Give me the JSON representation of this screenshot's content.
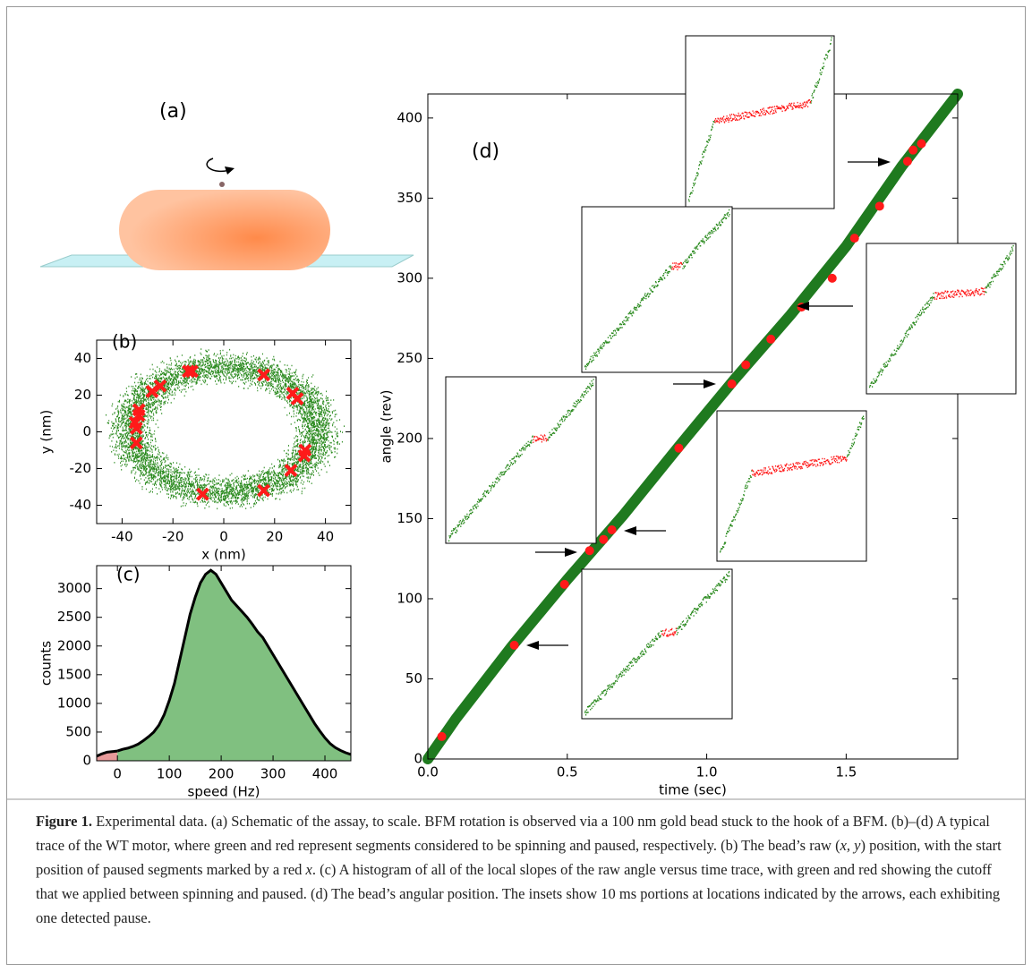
{
  "panel_a": {
    "label": "(a)"
  },
  "chart_data": [
    {
      "type": "scatter",
      "label": "(b)",
      "xlabel": "x (nm)",
      "ylabel": "y (nm)",
      "xlim": [
        -50,
        50
      ],
      "xticks": [
        -40,
        -20,
        0,
        20,
        40
      ],
      "ylim": [
        -50,
        50
      ],
      "yticks": [
        -40,
        -20,
        0,
        20,
        40
      ],
      "series": [
        {
          "marker": "x",
          "color": "#ff1a1a",
          "x": [
            -12.5,
            -13.9,
            15.7,
            -25,
            -28.2,
            27.1,
            28.9,
            -33.4,
            -33.4,
            -34.8,
            -34.4,
            -34.4,
            32,
            31.7,
            26.4,
            15.7,
            -8.3
          ],
          "values": [
            33,
            33,
            31,
            25,
            22,
            21,
            18,
            12,
            9,
            5,
            2,
            -6,
            -10,
            -13,
            -21,
            -32,
            -34
          ]
        }
      ]
    },
    {
      "type": "area",
      "label": "(c)",
      "xlabel": "speed (Hz)",
      "ylabel": "counts",
      "edgecolor": "#000000",
      "xlim": [
        -40,
        450
      ],
      "xticks": [
        0,
        100,
        200,
        300,
        400
      ],
      "ylim": [
        0,
        3400
      ],
      "yticks": [
        0,
        500,
        1000,
        1500,
        2000,
        2500,
        3000
      ],
      "series": [
        {
          "color": "#e89a9a",
          "x": [
            -40,
            -30,
            -20,
            -10,
            0
          ],
          "values": [
            80,
            120,
            150,
            160,
            170
          ]
        },
        {
          "color": "#80c080",
          "x": [
            0,
            10,
            20,
            30,
            40,
            50,
            60,
            70,
            80,
            90,
            100,
            110,
            120,
            130,
            140,
            150,
            160,
            170,
            180,
            190,
            200,
            210,
            220,
            230,
            240,
            250,
            260,
            270,
            280,
            290,
            300,
            310,
            320,
            330,
            340,
            350,
            360,
            370,
            380,
            390,
            400,
            410,
            420,
            430,
            440,
            450
          ],
          "values": [
            170,
            200,
            220,
            250,
            290,
            350,
            420,
            500,
            620,
            800,
            1050,
            1350,
            1750,
            2150,
            2550,
            2850,
            3100,
            3250,
            3320,
            3250,
            3100,
            2950,
            2800,
            2700,
            2600,
            2500,
            2380,
            2250,
            2150,
            2000,
            1850,
            1700,
            1550,
            1400,
            1250,
            1100,
            950,
            800,
            650,
            520,
            400,
            300,
            230,
            180,
            140,
            110
          ]
        }
      ]
    },
    {
      "type": "line",
      "label": "(d)",
      "xlabel": "time (sec)",
      "ylabel": "angle (rev)",
      "xlim": [
        0,
        1.9
      ],
      "xticks": [
        {
          "value": 0,
          "label": "0.0"
        },
        0.5,
        {
          "value": 1,
          "label": "1.0"
        },
        1.5
      ],
      "ylim": [
        0,
        415
      ],
      "yticks": [
        0,
        50,
        100,
        150,
        200,
        250,
        300,
        350,
        400
      ],
      "series": [
        {
          "marker": "line",
          "color": "#1f7a1f",
          "x": [
            0,
            0.1,
            0.3,
            0.5,
            0.6,
            0.7,
            0.9,
            1.1,
            1.3,
            1.5,
            1.7,
            1.9
          ],
          "values": [
            0,
            25,
            70,
            112,
            132,
            152,
            195,
            237,
            277,
            320,
            370,
            415
          ]
        },
        {
          "marker": "o",
          "color": "#ff1a1a",
          "x": [
            0.05,
            0.31,
            0.49,
            0.58,
            0.63,
            0.66,
            0.9,
            1.09,
            1.14,
            1.23,
            1.34,
            1.45,
            1.53,
            1.62,
            1.72,
            1.74,
            1.77
          ],
          "values": [
            14,
            71,
            109,
            130,
            137,
            143,
            194,
            234,
            246,
            262,
            282,
            300,
            325,
            345,
            373,
            380,
            384
          ]
        }
      ]
    }
  ],
  "caption": {
    "label": "Figure 1.",
    "segments": [
      {
        "text": " Experimental data. (a) Schematic of the assay, to scale. BFM rotation is observed via a 100 nm gold bead stuck to the hook of a BFM. (b)–(d) A typical trace of the WT motor, where green and red represent segments considered to be spinning and paused, respectively. (b) The bead’s raw ("
      },
      {
        "text": "x, y",
        "italic": true
      },
      {
        "text": ") position, with the start position of paused segments marked by a red "
      },
      {
        "text": "x",
        "italic": true
      },
      {
        "text": ". (c) A histogram of all of the local slopes of the raw angle versus time trace, with green and red showing the cutoff that we applied between spinning and paused. (d) The bead’s angular position. The insets show 10 ms portions at locations indicated by the arrows, each exhibiting one detected pause."
      }
    ]
  }
}
